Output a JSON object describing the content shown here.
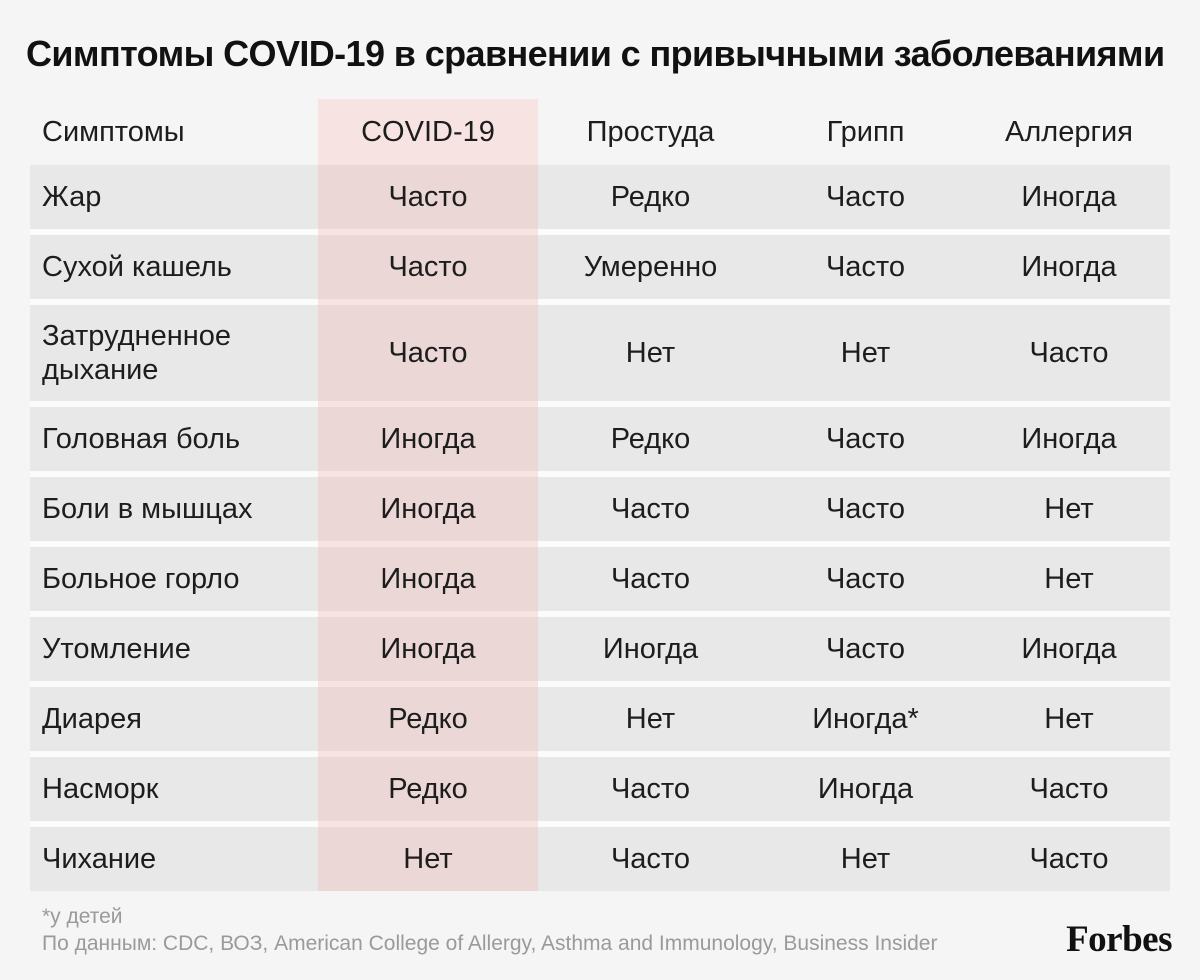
{
  "title": "Симптомы COVID-19 в сравнении с привычными заболеваниями",
  "chart_data": {
    "type": "table",
    "title": "Симптомы COVID-19 в сравнении с привычными заболеваниями",
    "columns": [
      "Симптомы",
      "COVID-19",
      "Простуда",
      "Грипп",
      "Аллергия"
    ],
    "highlighted_column": "COVID-19",
    "rows": [
      [
        "Жар",
        "Часто",
        "Редко",
        "Часто",
        "Иногда"
      ],
      [
        "Сухой кашель",
        "Часто",
        "Умеренно",
        "Часто",
        "Иногда"
      ],
      [
        "Затрудненное дыхание",
        "Часто",
        "Нет",
        "Нет",
        "Часто"
      ],
      [
        "Головная боль",
        "Иногда",
        "Редко",
        "Часто",
        "Иногда"
      ],
      [
        "Боли в мышцах",
        "Иногда",
        "Часто",
        "Часто",
        "Нет"
      ],
      [
        "Больное горло",
        "Иногда",
        "Часто",
        "Часто",
        "Нет"
      ],
      [
        "Утомление",
        "Иногда",
        "Иногда",
        "Часто",
        "Иногда"
      ],
      [
        "Диарея",
        "Редко",
        "Нет",
        "Иногда*",
        "Нет"
      ],
      [
        "Насморк",
        "Редко",
        "Часто",
        "Иногда",
        "Часто"
      ],
      [
        "Чихание",
        "Нет",
        "Часто",
        "Нет",
        "Часто"
      ]
    ]
  },
  "footnote": "*у детей",
  "source": "По данным: CDC, ВОЗ, American College of Allergy, Asthma and Immunology, Business Insider",
  "brand": "Forbes",
  "colors": {
    "page_background": "#f6f5f5",
    "row_background": "#e9e8e8",
    "row_gap": "#fbfbfb",
    "highlight_column_light": "#f7e4e2",
    "highlight_cell": "#ebd7d5",
    "text": "#1d1d1d",
    "footer_text": "#9a9a9a"
  }
}
